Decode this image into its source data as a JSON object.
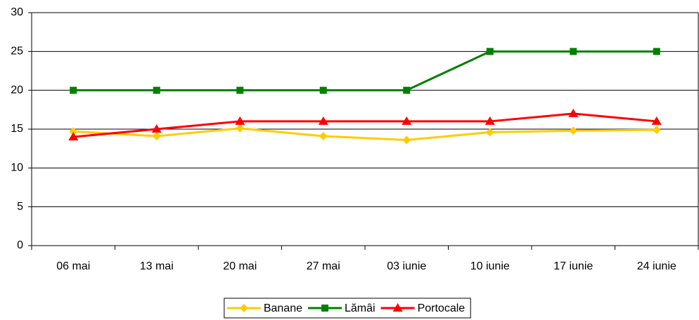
{
  "chart_data": {
    "type": "line",
    "categories": [
      "06 mai",
      "13 mai",
      "20 mai",
      "27 mai",
      "03 iunie",
      "10 iunie",
      "17 iunie",
      "24 iunie"
    ],
    "series": [
      {
        "name": "Banane",
        "color": "#ffcc00",
        "marker": "diamond",
        "values": [
          14.7,
          14.1,
          15.1,
          14.1,
          13.6,
          14.6,
          14.8,
          14.9
        ]
      },
      {
        "name": "Lămâi",
        "color": "#008000",
        "marker": "square",
        "values": [
          20,
          20,
          20,
          20,
          20,
          25,
          25,
          25
        ]
      },
      {
        "name": "Portocale",
        "color": "#ff0000",
        "marker": "triangle",
        "values": [
          14,
          15,
          16,
          16,
          16,
          16,
          17,
          16
        ]
      }
    ],
    "ylim": [
      0,
      30
    ],
    "yticks": [
      0,
      5,
      10,
      15,
      20,
      25,
      30
    ],
    "grid": true,
    "legend": "bottom"
  }
}
